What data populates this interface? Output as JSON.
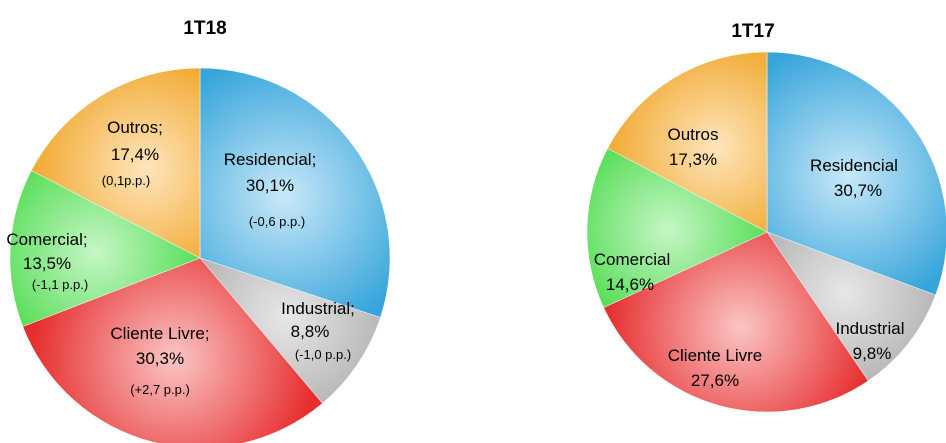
{
  "chart_data": [
    {
      "type": "pie",
      "title": "1T18",
      "slices": [
        {
          "key": "res",
          "label": "Residencial;",
          "value": 30.1,
          "value_text": "30,1%",
          "change": "(-0,6 p.p.)",
          "color": "#3aaee6"
        },
        {
          "key": "ind",
          "label": "Industrial;",
          "value": 8.8,
          "value_text": "8,8%",
          "change": "(-1,0 p.p.)",
          "color": "#a8a8a8"
        },
        {
          "key": "cli",
          "label": "Cliente Livre;",
          "value": 30.3,
          "value_text": "30,3%",
          "change": "(+2,7 p.p.)",
          "color": "#f23030"
        },
        {
          "key": "com",
          "label": "Comercial;",
          "value": 13.5,
          "value_text": "13,5%",
          "change": "(-1,1 p.p.)",
          "color": "#33e033"
        },
        {
          "key": "out",
          "label": "Outros;",
          "value": 17.4,
          "value_text": "17,4%",
          "change": "(0,1p.p.)",
          "color": "#fba20f"
        }
      ]
    },
    {
      "type": "pie",
      "title": "1T17",
      "slices": [
        {
          "key": "res",
          "label": "Residencial",
          "value": 30.7,
          "value_text": "30,7%",
          "color": "#3aaee6"
        },
        {
          "key": "ind",
          "label": "Industrial",
          "value": 9.8,
          "value_text": "9,8%",
          "color": "#a8a8a8"
        },
        {
          "key": "cli",
          "label": "Cliente Livre",
          "value": 27.6,
          "value_text": "27,6%",
          "color": "#f23030"
        },
        {
          "key": "com",
          "label": "Comercial",
          "value": 14.6,
          "value_text": "14,6%",
          "color": "#33e033"
        },
        {
          "key": "out",
          "label": "Outros",
          "value": 17.3,
          "value_text": "17,3%",
          "color": "#fba20f"
        }
      ]
    }
  ]
}
